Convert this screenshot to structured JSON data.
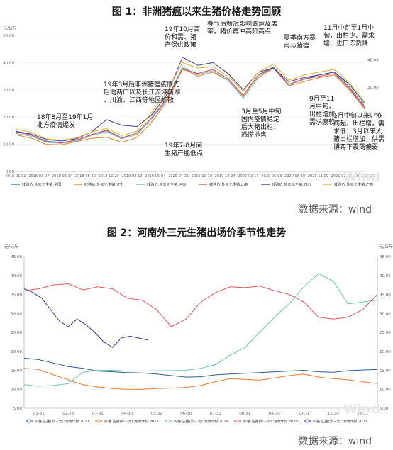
{
  "fig1": {
    "title": "图 1：非洲猪瘟以来生猪价格走势回顾",
    "unit_left": "元/公斤",
    "source": "数据来源：wind",
    "watermark": "Wind",
    "chart_data": {
      "type": "line",
      "title": "图 1：非洲猪瘟以来生猪价格走势回顾",
      "ylim": [
        0,
        50
      ],
      "yticks": [
        "0.00",
        "10.00",
        "20.00",
        "30.00",
        "40.00",
        "50.00"
      ],
      "right_yticks": [
        "20.00",
        "30.00",
        "40.00"
      ],
      "xticks": [
        "2018-01-01",
        "2018-03-27",
        "2018-06-14",
        "2018-08-30",
        "2018-11-20",
        "2019-02-13",
        "2019-05-04",
        "2019-07-21",
        "2019-10-10",
        "2019-12-24",
        "2020-03-17",
        "2020-06-03",
        "2020-08-19",
        "2020-11-09",
        "2021-01-23",
        "2021-04-25"
      ],
      "series": [
        {
          "name": "收购价:外三元生猪:全国",
          "color": "#4472c4",
          "values": [
            14.5,
            13.4,
            11.2,
            10.6,
            11.5,
            13.6,
            15.2,
            12.4,
            14.0,
            20.0,
            27.0,
            38.0,
            36.0,
            37.5,
            34.0,
            28.0,
            35.5,
            38.5,
            32.0,
            34.0,
            35.5,
            36.5,
            31.0,
            24.0
          ]
        },
        {
          "name": "收购价:外三元生猪:辽宁",
          "color": "#ed7d31",
          "values": [
            13.5,
            12.3,
            10.0,
            9.8,
            11.0,
            12.2,
            12.6,
            10.7,
            12.5,
            18.5,
            26.0,
            38.0,
            35.0,
            36.5,
            33.5,
            27.5,
            34.5,
            38.0,
            31.5,
            33.0,
            34.5,
            35.5,
            30.0,
            23.0
          ]
        },
        {
          "name": "收购价:外三元生猪:河南",
          "color": "#70c4c4",
          "values": [
            14.0,
            13.0,
            10.8,
            10.3,
            11.2,
            13.2,
            14.6,
            12.0,
            13.6,
            19.5,
            26.5,
            38.5,
            35.5,
            37.0,
            33.5,
            27.0,
            35.0,
            38.2,
            31.8,
            33.8,
            35.0,
            36.0,
            30.5,
            23.5
          ]
        },
        {
          "name": "收购价:外三元生猪:山东",
          "color": "#e05050",
          "values": [
            14.6,
            13.5,
            11.0,
            10.5,
            11.6,
            13.5,
            15.0,
            12.3,
            14.0,
            20.0,
            27.0,
            37.5,
            36.0,
            37.5,
            34.0,
            28.0,
            35.5,
            38.0,
            32.0,
            34.0,
            35.0,
            36.0,
            30.5,
            23.5
          ]
        },
        {
          "name": "收购价:外三元生猪:四川",
          "color": "#3f3f99",
          "values": [
            14.8,
            13.8,
            11.8,
            11.2,
            12.0,
            14.5,
            19.0,
            17.0,
            16.5,
            21.0,
            28.5,
            42.0,
            39.0,
            40.0,
            36.0,
            30.0,
            36.5,
            38.0,
            33.0,
            34.5,
            35.5,
            36.5,
            32.0,
            25.0
          ]
        },
        {
          "name": "收购价:外三元生猪:广东",
          "color": "#e0b030",
          "values": [
            15.5,
            14.5,
            12.0,
            11.5,
            12.3,
            14.5,
            15.8,
            13.2,
            14.8,
            22.0,
            29.5,
            40.0,
            38.0,
            38.5,
            35.0,
            29.5,
            36.5,
            39.5,
            33.5,
            35.5,
            36.5,
            37.5,
            32.5,
            25.5
          ]
        }
      ],
      "annotations": [
        {
          "lines": [
            "18年8月至19年1月",
            "北方疫情爆发"
          ]
        },
        {
          "lines": [
            "19年3月后非洲猪瘟疫情先",
            "后向两广以及长江流域两湖",
            "、川渝、江西等地区扩散"
          ]
        },
        {
          "lines": [
            "19年7-8月间",
            "生猪产能低点"
          ]
        },
        {
          "lines": [
            "19年10月高",
            "价和需、猪",
            "产保供政策"
          ]
        },
        {
          "lines": [
            "春节后新冠影响调运及屠",
            "宰，猪价再冲高阶高点"
          ]
        },
        {
          "lines": [
            "3月至5月中旬",
            "国内疫情稳定",
            "后大猪出栏、",
            "恐慌抛售"
          ]
        },
        {
          "lines": [
            "夏季南方暴",
            "雨与猪瘟"
          ]
        },
        {
          "lines": [
            "9月至11",
            "月中旬，",
            "出栏增加，",
            "需求疲软"
          ]
        },
        {
          "lines": [
            "11月中旬至1月中",
            "旬，出栏少、需求",
            "增、进口冻货降"
          ]
        },
        {
          "lines": [
            "1月中旬以来，疫",
            "病起，出栏增，需",
            "求低；3月以来大",
            "猪出栏增加，供需",
            "博弈下震荡偏弱"
          ]
        }
      ]
    }
  },
  "fig2": {
    "title": "图 2：河南外三元生猪出场价季节性走势",
    "unit_left": "元/公斤",
    "unit_right": "元/公斤",
    "source": "数据来源：wind",
    "watermark": "Wind",
    "chart_data": {
      "type": "line",
      "title": "图 2：河南外三元生猪出场价季节性走势",
      "ylim": [
        5,
        45
      ],
      "yticks": [
        "5.00",
        "10.00",
        "15.00",
        "20.00",
        "25.00",
        "30.00",
        "35.00",
        "40.00",
        "45.00"
      ],
      "xticks": [
        "01-31",
        "02-28",
        "03-31",
        "04-30",
        "05-31",
        "06-30",
        "07-31",
        "08-31",
        "09-30",
        "10-31",
        "11-30",
        "12-31"
      ],
      "series": [
        {
          "name": "价格:生猪(外三元):河南开封:2017",
          "color": "#2e5e8a",
          "x": [
            0,
            0.5,
            1,
            1.5,
            2,
            2.5,
            3,
            3.5,
            4,
            4.5,
            5,
            5.5,
            6,
            6.5,
            7,
            7.5,
            8,
            8.5,
            9,
            9.5,
            10,
            10.5,
            11,
            11.5,
            12
          ],
          "values": [
            18.2,
            17.8,
            16.9,
            16.0,
            15.5,
            14.8,
            14.6,
            14.4,
            14.3,
            14.0,
            13.6,
            13.2,
            13.3,
            13.8,
            14.0,
            14.2,
            14.4,
            14.6,
            14.8,
            15.0,
            14.6,
            14.5,
            14.9,
            15.1,
            15.2
          ]
        },
        {
          "name": "价格:生猪(外三元):河南开封:2018",
          "color": "#ed7d31",
          "x": [
            0,
            0.5,
            1,
            1.5,
            2,
            2.5,
            3,
            3.5,
            4,
            4.5,
            5,
            5.5,
            6,
            6.5,
            7,
            7.5,
            8,
            8.5,
            9,
            9.5,
            10,
            10.5,
            11,
            11.5,
            12
          ],
          "values": [
            15.5,
            15.2,
            13.8,
            12.5,
            11.2,
            10.6,
            10.2,
            10.0,
            10.0,
            10.2,
            10.3,
            10.5,
            11.0,
            12.0,
            12.8,
            12.6,
            12.4,
            13.0,
            13.6,
            14.0,
            13.2,
            12.8,
            12.5,
            12.0,
            11.5
          ]
        },
        {
          "name": "价格:生猪(外三元):河南开封:2019",
          "color": "#6cc4b8",
          "x": [
            0,
            0.5,
            1,
            1.5,
            2,
            2.5,
            3,
            3.5,
            4,
            4.5,
            5,
            5.5,
            6,
            6.5,
            7,
            7.5,
            8,
            8.5,
            9,
            9.5,
            10,
            10.5,
            11,
            11.5,
            12
          ],
          "values": [
            11.2,
            10.8,
            11.0,
            11.5,
            14.5,
            15.0,
            15.0,
            14.8,
            14.8,
            14.9,
            14.9,
            15.0,
            15.5,
            16.5,
            19.0,
            21.0,
            25.0,
            29.0,
            32.5,
            37.0,
            40.5,
            38.5,
            32.5,
            33.0,
            33.5
          ]
        },
        {
          "name": "价格:生猪(外三元):河南开封:2020",
          "color": "#e05a5a",
          "x": [
            0,
            0.5,
            1,
            1.5,
            2,
            2.5,
            3,
            3.5,
            4,
            4.5,
            5,
            5.5,
            6,
            6.5,
            7,
            7.5,
            8,
            8.5,
            9,
            9.5,
            10,
            10.5,
            11,
            11.5,
            12
          ],
          "values": [
            36.0,
            36.5,
            37.5,
            37.8,
            36.2,
            37.0,
            36.5,
            34.0,
            33.5,
            31.0,
            26.5,
            28.5,
            33.0,
            35.5,
            37.0,
            36.8,
            37.2,
            36.0,
            35.0,
            33.0,
            29.0,
            28.5,
            29.0,
            31.0,
            35.0
          ]
        },
        {
          "name": "价格:生猪(外三元):河南开封:2021",
          "color": "#3a3a8c",
          "x": [
            0,
            0.3,
            0.6,
            0.9,
            1.2,
            1.5,
            1.8,
            2.1,
            2.4,
            2.7,
            3.0,
            3.3,
            3.6,
            3.9,
            4.2
          ],
          "values": [
            36.5,
            35.5,
            34.0,
            31.0,
            28.0,
            26.5,
            28.5,
            27.0,
            25.0,
            22.5,
            21.0,
            23.5,
            24.0,
            23.5,
            23.0
          ]
        }
      ]
    }
  }
}
